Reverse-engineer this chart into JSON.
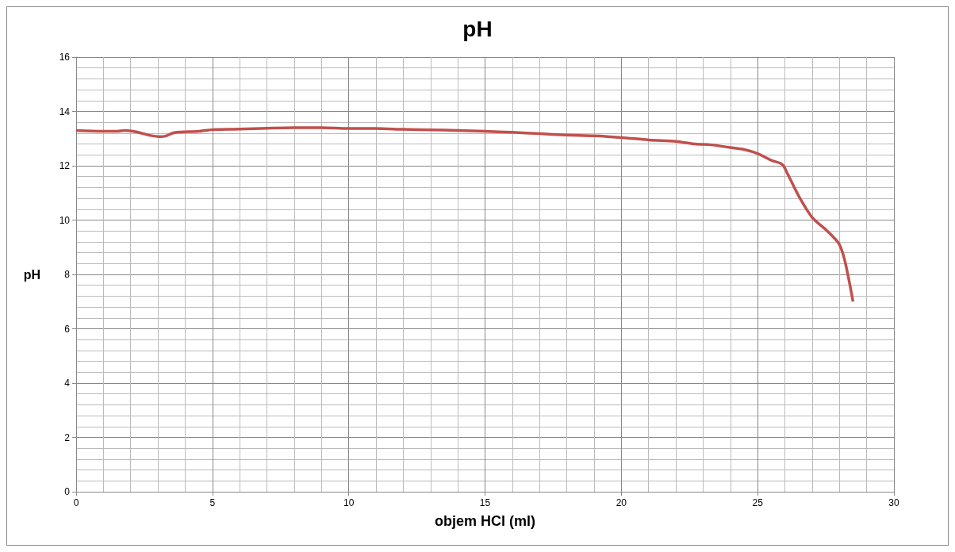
{
  "chart_data": {
    "type": "line",
    "title": "pH",
    "xlabel": "objem HCl (ml)",
    "ylabel": "pH",
    "series": [
      {
        "color": "#c0504d",
        "x": [
          0,
          1,
          1.5,
          1.8,
          2.2,
          2.7,
          3.1,
          3.3,
          3.6,
          4.5,
          5,
          6,
          7,
          8,
          9,
          10,
          11,
          12,
          13,
          14,
          15,
          16,
          17,
          18,
          19,
          20,
          21,
          22,
          22.7,
          23.3,
          24,
          24.5,
          25,
          25.5,
          25.9,
          26.1,
          26.5,
          27,
          27.5,
          27.8,
          28,
          28.2,
          28.5
        ],
        "values": [
          13.3,
          13.27,
          13.27,
          13.3,
          13.25,
          13.12,
          13.07,
          13.1,
          13.22,
          13.27,
          13.33,
          13.35,
          13.38,
          13.4,
          13.4,
          13.37,
          13.37,
          13.34,
          13.32,
          13.3,
          13.27,
          13.23,
          13.18,
          13.13,
          13.1,
          13.04,
          12.95,
          12.9,
          12.8,
          12.77,
          12.67,
          12.6,
          12.45,
          12.2,
          12.05,
          11.7,
          10.9,
          10.1,
          9.65,
          9.35,
          9.1,
          8.5,
          7.0
        ]
      }
    ],
    "xlim": [
      0,
      30
    ],
    "xticks": [
      0,
      5,
      10,
      15,
      20,
      25,
      30
    ],
    "ylim": [
      0,
      16
    ],
    "yticks": [
      0,
      2,
      4,
      6,
      8,
      10,
      12,
      14,
      16
    ],
    "grid": true,
    "marker": "none",
    "line_style": "solid"
  }
}
